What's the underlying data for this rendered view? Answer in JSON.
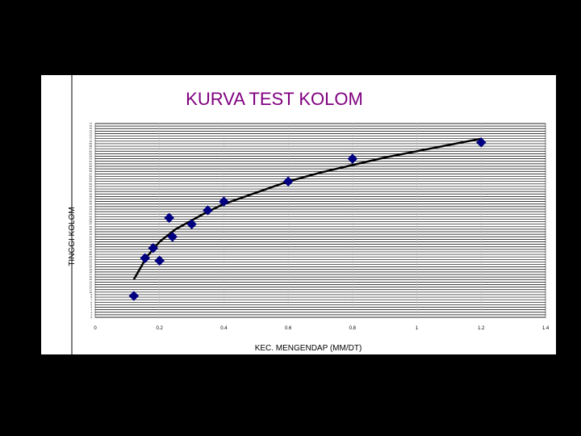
{
  "colors": {
    "background": "#000000",
    "panel": "#ffffff",
    "title": "#800080",
    "marker": "#000080",
    "curve": "#000000",
    "gridline": "#000000"
  },
  "chart_data": {
    "type": "scatter",
    "title": "KURVA TEST KOLOM",
    "xlabel": "KEC. MENGENDAP (MM/DT)",
    "ylabel": "TINGGI KOLOM",
    "xlim": [
      0,
      1.4
    ],
    "ylim": [
      0,
      77
    ],
    "xticks": [
      "0",
      "0.2",
      "0.4",
      "0.6",
      "0.8",
      "1",
      "1.2",
      "1.4"
    ],
    "yticks": [
      "0",
      "1",
      "2",
      "3",
      "4",
      "5",
      "6",
      "7",
      "8",
      "9",
      "10",
      "11",
      "12",
      "13",
      "14",
      "15",
      "16",
      "17",
      "18",
      "19",
      "20",
      "21",
      "22",
      "23",
      "24",
      "25",
      "26",
      "27",
      "28",
      "29",
      "30",
      "31",
      "32",
      "33",
      "34",
      "35",
      "36",
      "37",
      "38",
      "39",
      "40",
      "41",
      "42",
      "43",
      "44",
      "45",
      "46",
      "47",
      "48",
      "49",
      "50",
      "51",
      "52",
      "53",
      "54",
      "55",
      "56",
      "57",
      "58",
      "59",
      "60",
      "61",
      "62",
      "63",
      "64",
      "65",
      "66",
      "67",
      "68",
      "69",
      "70",
      "71",
      "72",
      "73",
      "74",
      "75",
      "76",
      "77"
    ],
    "grid": true,
    "legend": "none",
    "series": [
      {
        "kind": "points",
        "x": [
          0.12,
          0.155,
          0.18,
          0.2,
          0.23,
          0.24,
          0.3,
          0.35,
          0.4,
          0.6,
          0.8,
          1.2
        ],
        "y": [
          8.5,
          23.5,
          27.5,
          22.5,
          39.5,
          32,
          37,
          42.5,
          46,
          54,
          63,
          69.5
        ]
      },
      {
        "kind": "trendline",
        "x": [
          0.12,
          0.16,
          0.2,
          0.25,
          0.3,
          0.35,
          0.4,
          0.5,
          0.6,
          0.7,
          0.8,
          0.9,
          1.0,
          1.1,
          1.2
        ],
        "y": [
          15,
          24,
          30,
          35,
          38.5,
          42,
          45,
          49.5,
          54,
          57.5,
          60.5,
          63.5,
          66,
          68.5,
          71
        ]
      }
    ]
  }
}
